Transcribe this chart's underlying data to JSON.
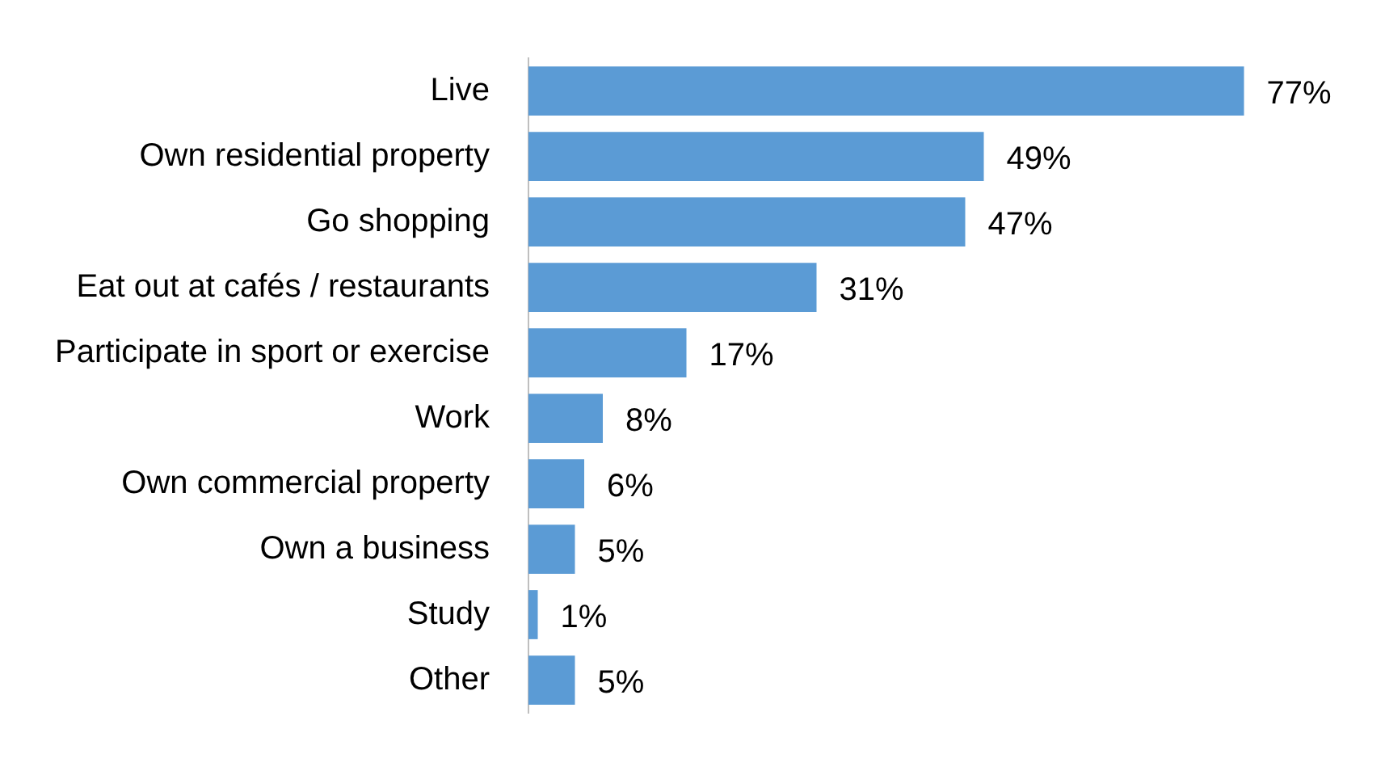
{
  "chart_data": {
    "type": "bar",
    "orientation": "horizontal",
    "categories": [
      "Live",
      "Own residential property",
      "Go shopping",
      "Eat out at cafés / restaurants",
      "Participate in sport or exercise",
      "Work",
      "Own commercial property",
      "Own a business",
      "Study",
      "Other"
    ],
    "values": [
      77,
      49,
      47,
      31,
      17,
      8,
      6,
      5,
      1,
      5
    ],
    "value_labels": [
      "77%",
      "49%",
      "47%",
      "31%",
      "17%",
      "8%",
      "6%",
      "5%",
      "1%",
      "5%"
    ],
    "color": "#5b9bd5",
    "legend": false
  }
}
